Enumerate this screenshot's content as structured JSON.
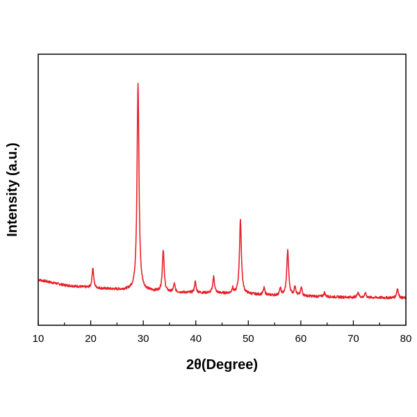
{
  "chart_data": {
    "type": "line",
    "title": "",
    "xlabel": "2θ(Degree)",
    "ylabel": "Intensity (a.u.)",
    "xlim": [
      10,
      80
    ],
    "ylim": [
      0,
      100
    ],
    "x_ticks": [
      10,
      20,
      30,
      40,
      50,
      60,
      70,
      80
    ],
    "x_tick_labels": [
      "10",
      "20",
      "30",
      "40",
      "50",
      "60",
      "70",
      "80"
    ],
    "y_tick_labels": [],
    "grid": false,
    "legend": "none",
    "series": [
      {
        "color": "#e8202a",
        "baseline": [
          [
            10,
            16.8
          ],
          [
            15,
            14.8
          ],
          [
            20,
            13.8
          ],
          [
            25,
            13.2
          ],
          [
            30,
            12.8
          ],
          [
            35,
            12.2
          ],
          [
            40,
            12.0
          ],
          [
            45,
            11.8
          ],
          [
            50,
            11.5
          ],
          [
            55,
            11.0
          ],
          [
            60,
            10.8
          ],
          [
            65,
            10.5
          ],
          [
            70,
            10.3
          ],
          [
            75,
            10.2
          ],
          [
            80,
            10.0
          ]
        ],
        "peaks": [
          {
            "x": 20.4,
            "height": 7.5,
            "width": 0.18
          },
          {
            "x": 29.0,
            "height": 76,
            "width": 0.22
          },
          {
            "x": 33.8,
            "height": 15.5,
            "width": 0.2
          },
          {
            "x": 35.9,
            "height": 3.0,
            "width": 0.18
          },
          {
            "x": 39.9,
            "height": 4.0,
            "width": 0.18
          },
          {
            "x": 43.4,
            "height": 6.0,
            "width": 0.2
          },
          {
            "x": 47.0,
            "height": 2.0,
            "width": 0.15
          },
          {
            "x": 48.5,
            "height": 27,
            "width": 0.22
          },
          {
            "x": 53.0,
            "height": 2.5,
            "width": 0.18
          },
          {
            "x": 56.1,
            "height": 2.5,
            "width": 0.18
          },
          {
            "x": 57.5,
            "height": 16.5,
            "width": 0.22
          },
          {
            "x": 58.9,
            "height": 3.5,
            "width": 0.18
          },
          {
            "x": 60.1,
            "height": 3.0,
            "width": 0.18
          },
          {
            "x": 64.5,
            "height": 1.5,
            "width": 0.18
          },
          {
            "x": 70.9,
            "height": 2.0,
            "width": 0.18
          },
          {
            "x": 72.3,
            "height": 1.5,
            "width": 0.18
          },
          {
            "x": 78.4,
            "height": 3.5,
            "width": 0.2
          }
        ]
      }
    ]
  }
}
